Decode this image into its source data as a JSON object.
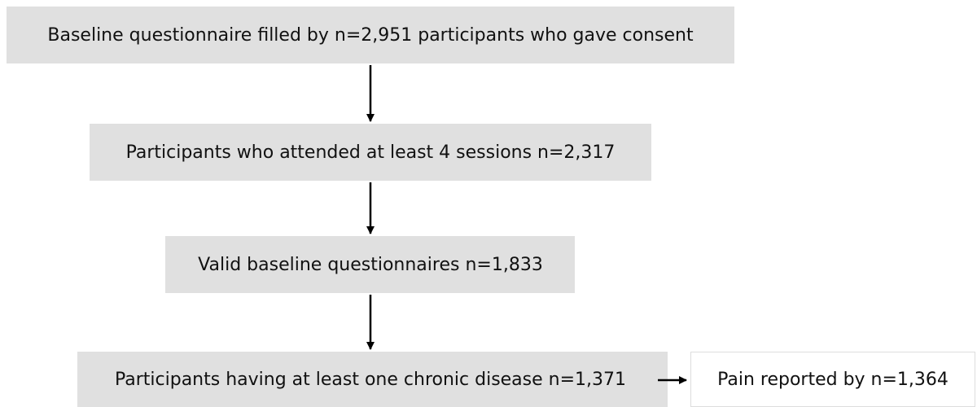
{
  "nodes": [
    {
      "label": "Baseline questionnaire filled by n=2,951 participants who gave consent"
    },
    {
      "label": "Participants who attended at least 4 sessions n=2,317"
    },
    {
      "label": "Valid baseline questionnaires n=1,833"
    },
    {
      "label": "Participants having at least one chronic disease n=1,371"
    },
    {
      "label": "Pain reported by n=1,364"
    }
  ]
}
